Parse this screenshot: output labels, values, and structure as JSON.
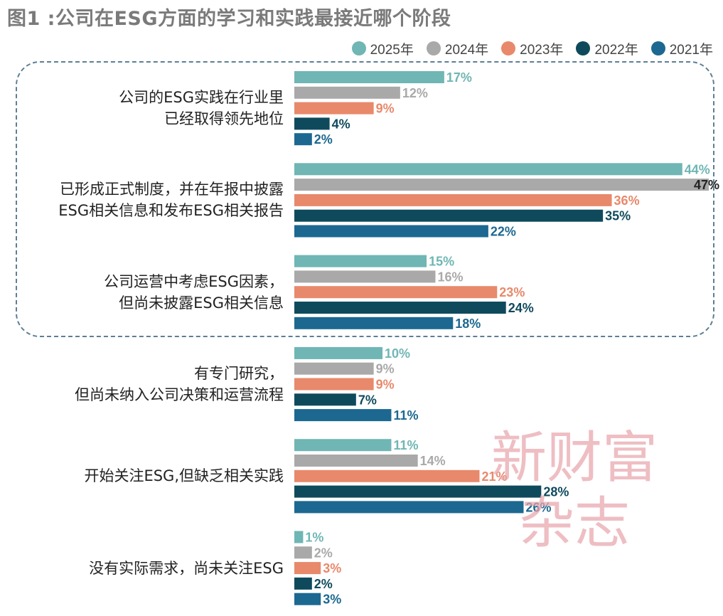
{
  "title": "图1 :公司在ESG方面的学习和实践最接近哪个阶段",
  "watermark": [
    "新财富",
    "杂志"
  ],
  "chart_data": {
    "type": "bar",
    "orientation": "horizontal",
    "title": "图1 :公司在ESG方面的学习和实践最接近哪个阶段",
    "xlabel": "",
    "ylabel": "",
    "legend_position": "top-right",
    "grid": false,
    "value_suffix": "%",
    "categories": [
      [
        "公司的ESG实践在行业里",
        "已经取得领先地位"
      ],
      [
        "已形成正式制度，并在年报中披露",
        "ESG相关信息和发布ESG相关报告"
      ],
      [
        "公司运营中考虑ESG因素，",
        "但尚未披露ESG相关信息"
      ],
      [
        "有专门研究，",
        "但尚未纳入公司决策和运营流程"
      ],
      [
        "开始关注ESG,但缺乏相关实践"
      ],
      [
        "没有实际需求，尚未关注ESG"
      ]
    ],
    "series": [
      {
        "name": "2025年",
        "color": "#6fb6b4",
        "values": [
          17,
          44,
          15,
          10,
          11,
          1
        ]
      },
      {
        "name": "2024年",
        "color": "#a9a9a9",
        "values": [
          12,
          47,
          16,
          9,
          14,
          2
        ]
      },
      {
        "name": "2023年",
        "color": "#e8896b",
        "values": [
          9,
          36,
          23,
          9,
          21,
          3
        ]
      },
      {
        "name": "2022年",
        "color": "#0f4a5c",
        "values": [
          4,
          35,
          24,
          7,
          28,
          2
        ]
      },
      {
        "name": "2021年",
        "color": "#1c6891",
        "values": [
          2,
          22,
          18,
          11,
          26,
          3
        ]
      }
    ],
    "xlim": [
      0,
      47
    ]
  }
}
